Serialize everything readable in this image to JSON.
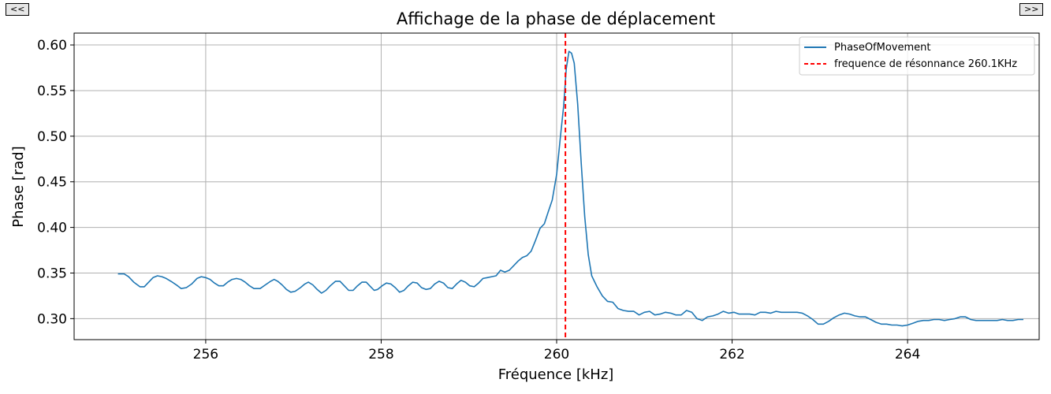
{
  "nav": {
    "prev_label": "<<",
    "next_label": ">>"
  },
  "chart_data": {
    "type": "line",
    "title": "Affichage de la phase de déplacement",
    "xlabel": "Fréquence [kHz]",
    "ylabel": "Phase [rad]",
    "xlim": [
      254.5,
      265.5
    ],
    "ylim": [
      0.277,
      0.613
    ],
    "xticks": [
      256,
      258,
      260,
      262,
      264
    ],
    "yticks": [
      0.3,
      0.35,
      0.4,
      0.45,
      0.5,
      0.55,
      0.6
    ],
    "xtick_labels": [
      "256",
      "258",
      "260",
      "262",
      "264"
    ],
    "ytick_labels": [
      "0.30",
      "0.35",
      "0.40",
      "0.45",
      "0.50",
      "0.55",
      "0.60"
    ],
    "grid": true,
    "legend_position": "top-right",
    "series": [
      {
        "name": "PhaseOfMovement",
        "color": "#1f77b4",
        "style": "solid",
        "points": [
          [
            255.0,
            0.349
          ],
          [
            255.07,
            0.349
          ],
          [
            255.12,
            0.346
          ],
          [
            255.18,
            0.34
          ],
          [
            255.25,
            0.335
          ],
          [
            255.3,
            0.335
          ],
          [
            255.35,
            0.34
          ],
          [
            255.4,
            0.345
          ],
          [
            255.45,
            0.347
          ],
          [
            255.5,
            0.346
          ],
          [
            255.55,
            0.344
          ],
          [
            255.62,
            0.34
          ],
          [
            255.68,
            0.336
          ],
          [
            255.72,
            0.333
          ],
          [
            255.78,
            0.334
          ],
          [
            255.84,
            0.338
          ],
          [
            255.9,
            0.344
          ],
          [
            255.95,
            0.346
          ],
          [
            256.0,
            0.345
          ],
          [
            256.05,
            0.343
          ],
          [
            256.1,
            0.339
          ],
          [
            256.15,
            0.336
          ],
          [
            256.2,
            0.336
          ],
          [
            256.25,
            0.34
          ],
          [
            256.3,
            0.343
          ],
          [
            256.35,
            0.344
          ],
          [
            256.4,
            0.343
          ],
          [
            256.45,
            0.34
          ],
          [
            256.5,
            0.336
          ],
          [
            256.55,
            0.333
          ],
          [
            256.62,
            0.333
          ],
          [
            256.68,
            0.337
          ],
          [
            256.74,
            0.341
          ],
          [
            256.78,
            0.343
          ],
          [
            256.82,
            0.341
          ],
          [
            256.87,
            0.337
          ],
          [
            256.92,
            0.332
          ],
          [
            256.97,
            0.329
          ],
          [
            257.02,
            0.33
          ],
          [
            257.08,
            0.334
          ],
          [
            257.13,
            0.338
          ],
          [
            257.17,
            0.34
          ],
          [
            257.22,
            0.337
          ],
          [
            257.27,
            0.332
          ],
          [
            257.32,
            0.328
          ],
          [
            257.37,
            0.331
          ],
          [
            257.42,
            0.336
          ],
          [
            257.48,
            0.341
          ],
          [
            257.53,
            0.341
          ],
          [
            257.58,
            0.336
          ],
          [
            257.63,
            0.331
          ],
          [
            257.68,
            0.331
          ],
          [
            257.73,
            0.336
          ],
          [
            257.78,
            0.34
          ],
          [
            257.83,
            0.34
          ],
          [
            257.88,
            0.335
          ],
          [
            257.92,
            0.331
          ],
          [
            257.96,
            0.332
          ],
          [
            258.01,
            0.336
          ],
          [
            258.06,
            0.339
          ],
          [
            258.11,
            0.338
          ],
          [
            258.16,
            0.334
          ],
          [
            258.21,
            0.329
          ],
          [
            258.26,
            0.331
          ],
          [
            258.31,
            0.336
          ],
          [
            258.36,
            0.34
          ],
          [
            258.41,
            0.339
          ],
          [
            258.46,
            0.334
          ],
          [
            258.51,
            0.332
          ],
          [
            258.56,
            0.333
          ],
          [
            258.61,
            0.338
          ],
          [
            258.66,
            0.341
          ],
          [
            258.71,
            0.339
          ],
          [
            258.76,
            0.334
          ],
          [
            258.81,
            0.333
          ],
          [
            258.86,
            0.338
          ],
          [
            258.91,
            0.342
          ],
          [
            258.96,
            0.34
          ],
          [
            259.01,
            0.336
          ],
          [
            259.06,
            0.335
          ],
          [
            259.11,
            0.339
          ],
          [
            259.16,
            0.344
          ],
          [
            259.21,
            0.345
          ],
          [
            259.26,
            0.346
          ],
          [
            259.31,
            0.347
          ],
          [
            259.36,
            0.353
          ],
          [
            259.41,
            0.351
          ],
          [
            259.46,
            0.353
          ],
          [
            259.51,
            0.358
          ],
          [
            259.56,
            0.363
          ],
          [
            259.61,
            0.367
          ],
          [
            259.66,
            0.369
          ],
          [
            259.71,
            0.374
          ],
          [
            259.76,
            0.386
          ],
          [
            259.81,
            0.399
          ],
          [
            259.86,
            0.404
          ],
          [
            259.9,
            0.416
          ],
          [
            259.95,
            0.43
          ],
          [
            260.0,
            0.458
          ],
          [
            260.04,
            0.497
          ],
          [
            260.08,
            0.533
          ],
          [
            260.11,
            0.574
          ],
          [
            260.14,
            0.593
          ],
          [
            260.17,
            0.591
          ],
          [
            260.2,
            0.58
          ],
          [
            260.24,
            0.535
          ],
          [
            260.28,
            0.47
          ],
          [
            260.32,
            0.412
          ],
          [
            260.36,
            0.37
          ],
          [
            260.4,
            0.347
          ],
          [
            260.46,
            0.335
          ],
          [
            260.52,
            0.325
          ],
          [
            260.58,
            0.319
          ],
          [
            260.64,
            0.318
          ],
          [
            260.7,
            0.311
          ],
          [
            260.76,
            0.309
          ],
          [
            260.82,
            0.308
          ],
          [
            260.88,
            0.308
          ],
          [
            260.94,
            0.304
          ],
          [
            261.0,
            0.307
          ],
          [
            261.06,
            0.308
          ],
          [
            261.12,
            0.304
          ],
          [
            261.18,
            0.305
          ],
          [
            261.24,
            0.307
          ],
          [
            261.3,
            0.306
          ],
          [
            261.36,
            0.304
          ],
          [
            261.42,
            0.304
          ],
          [
            261.48,
            0.309
          ],
          [
            261.54,
            0.307
          ],
          [
            261.6,
            0.3
          ],
          [
            261.66,
            0.298
          ],
          [
            261.72,
            0.302
          ],
          [
            261.78,
            0.303
          ],
          [
            261.84,
            0.305
          ],
          [
            261.9,
            0.308
          ],
          [
            261.96,
            0.306
          ],
          [
            262.02,
            0.307
          ],
          [
            262.08,
            0.305
          ],
          [
            262.14,
            0.305
          ],
          [
            262.2,
            0.305
          ],
          [
            262.26,
            0.304
          ],
          [
            262.32,
            0.307
          ],
          [
            262.38,
            0.307
          ],
          [
            262.44,
            0.306
          ],
          [
            262.5,
            0.308
          ],
          [
            262.56,
            0.307
          ],
          [
            262.62,
            0.307
          ],
          [
            262.68,
            0.307
          ],
          [
            262.74,
            0.307
          ],
          [
            262.8,
            0.306
          ],
          [
            262.86,
            0.303
          ],
          [
            262.92,
            0.299
          ],
          [
            262.98,
            0.294
          ],
          [
            263.04,
            0.294
          ],
          [
            263.1,
            0.297
          ],
          [
            263.16,
            0.301
          ],
          [
            263.22,
            0.304
          ],
          [
            263.28,
            0.306
          ],
          [
            263.34,
            0.305
          ],
          [
            263.4,
            0.303
          ],
          [
            263.46,
            0.302
          ],
          [
            263.52,
            0.302
          ],
          [
            263.58,
            0.299
          ],
          [
            263.64,
            0.296
          ],
          [
            263.7,
            0.294
          ],
          [
            263.76,
            0.294
          ],
          [
            263.82,
            0.293
          ],
          [
            263.88,
            0.293
          ],
          [
            263.94,
            0.292
          ],
          [
            264.0,
            0.293
          ],
          [
            264.06,
            0.295
          ],
          [
            264.12,
            0.297
          ],
          [
            264.18,
            0.298
          ],
          [
            264.24,
            0.298
          ],
          [
            264.3,
            0.299
          ],
          [
            264.36,
            0.299
          ],
          [
            264.42,
            0.298
          ],
          [
            264.48,
            0.299
          ],
          [
            264.54,
            0.3
          ],
          [
            264.6,
            0.302
          ],
          [
            264.66,
            0.302
          ],
          [
            264.72,
            0.299
          ],
          [
            264.78,
            0.298
          ],
          [
            264.84,
            0.298
          ],
          [
            264.9,
            0.298
          ],
          [
            264.96,
            0.298
          ],
          [
            265.02,
            0.298
          ],
          [
            265.08,
            0.299
          ],
          [
            265.14,
            0.298
          ],
          [
            265.2,
            0.298
          ],
          [
            265.26,
            0.299
          ],
          [
            265.32,
            0.299
          ]
        ]
      },
      {
        "name": "frequence de résonnance 260.1KHz",
        "color": "#ff0000",
        "style": "dashed",
        "vline_x": 260.1
      }
    ]
  }
}
